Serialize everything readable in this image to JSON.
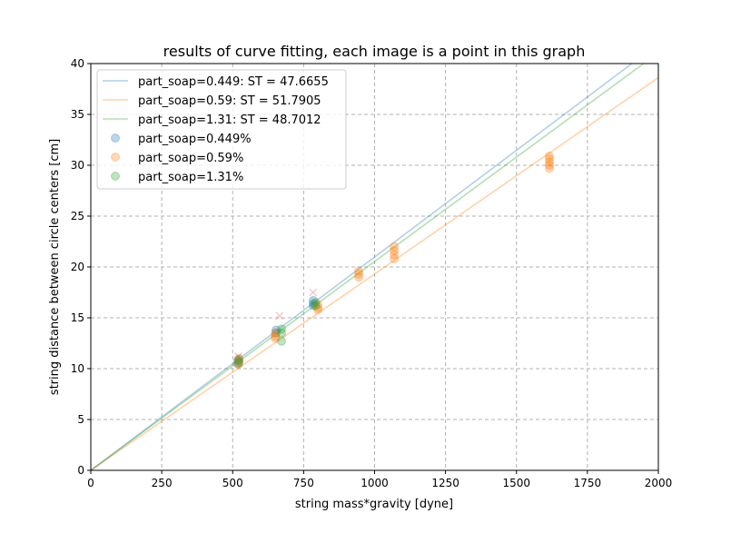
{
  "chart_data": {
    "type": "scatter",
    "title": "results of curve fitting, each image is a point in this graph",
    "xlabel": "string mass*gravity [dyne]",
    "ylabel": "string distance between circle centers [cm]",
    "xlim": [
      0,
      2000
    ],
    "ylim": [
      0,
      40
    ],
    "xticks": [
      0,
      250,
      500,
      750,
      1000,
      1250,
      1500,
      1750,
      2000
    ],
    "yticks": [
      0,
      5,
      10,
      15,
      20,
      25,
      30,
      35,
      40
    ],
    "grid": true,
    "grid_style": "dashed",
    "legend_position": "top-left",
    "fit_lines": [
      {
        "name": "part_soap=0.449: ST = 47.6655",
        "ST": 47.6655,
        "color": "#1f77b4"
      },
      {
        "name": "part_soap=0.59: ST = 51.7905",
        "ST": 51.7905,
        "color": "#ff7f0e"
      },
      {
        "name": "part_soap=1.31: ST = 48.7012",
        "ST": 48.7012,
        "color": "#2ca02c"
      }
    ],
    "series": [
      {
        "name": "part_soap=0.449%",
        "color": "#1f77b4",
        "points": [
          [
            518,
            10.5
          ],
          [
            518,
            10.8
          ],
          [
            653,
            13.5
          ],
          [
            653,
            13.8
          ],
          [
            784,
            16.2
          ],
          [
            784,
            16.4
          ],
          [
            784,
            16.7
          ]
        ]
      },
      {
        "name": "part_soap=0.59%",
        "color": "#ff7f0e",
        "points": [
          [
            520,
            10.4
          ],
          [
            522,
            10.7
          ],
          [
            522,
            11.0
          ],
          [
            650,
            13.0
          ],
          [
            650,
            13.2
          ],
          [
            650,
            13.5
          ],
          [
            800,
            15.8
          ],
          [
            800,
            16.0
          ],
          [
            800,
            16.3
          ],
          [
            944,
            19.0
          ],
          [
            944,
            19.3
          ],
          [
            944,
            19.6
          ],
          [
            1069,
            20.8
          ],
          [
            1069,
            21.2
          ],
          [
            1069,
            21.6
          ],
          [
            1069,
            22.0
          ],
          [
            1616,
            29.7
          ],
          [
            1616,
            30.0
          ],
          [
            1616,
            30.3
          ],
          [
            1616,
            30.6
          ],
          [
            1616,
            30.9
          ]
        ]
      },
      {
        "name": "part_soap=1.31%",
        "color": "#2ca02c",
        "points": [
          [
            522,
            10.6
          ],
          [
            522,
            10.9
          ],
          [
            672,
            12.7
          ],
          [
            672,
            13.5
          ],
          [
            672,
            13.9
          ],
          [
            792,
            16.2
          ],
          [
            792,
            16.5
          ]
        ]
      }
    ],
    "excluded_points": {
      "marker": "x",
      "color": "#d62728",
      "points": [
        [
          520,
          11.2
        ],
        [
          665,
          15.2
        ],
        [
          783,
          17.5
        ]
      ]
    }
  }
}
